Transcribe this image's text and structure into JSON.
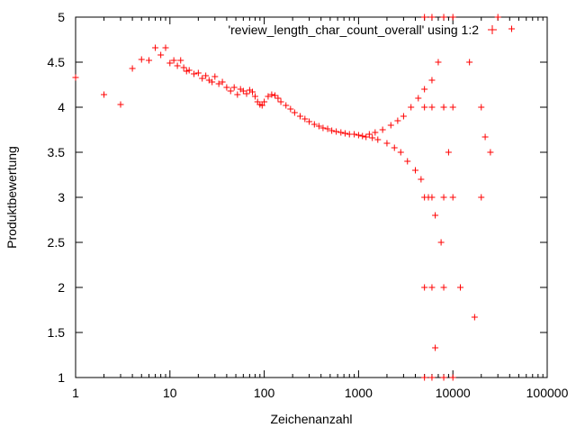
{
  "chart_data": {
    "type": "scatter",
    "title": "",
    "xlabel": "Zeichenanzahl",
    "ylabel": "Produktbewertung",
    "x_scale": "log",
    "xlim": [
      1,
      100000
    ],
    "ylim": [
      1,
      5
    ],
    "x_ticks": [
      1,
      10,
      100,
      1000,
      10000,
      100000
    ],
    "x_tick_labels": [
      "1",
      "10",
      "100",
      "1000",
      "10000",
      "100000"
    ],
    "y_ticks": [
      1,
      1.5,
      2,
      2.5,
      3,
      3.5,
      4,
      4.5,
      5
    ],
    "y_tick_labels": [
      "1",
      "1.5",
      "2",
      "2.5",
      "3",
      "3.5",
      "4",
      "4.5",
      "5"
    ],
    "grid": false,
    "legend_position": "top-right",
    "marker": "+",
    "color": "#ff0000",
    "series": [
      {
        "name": "'review_length_char_count_overall' using 1:2",
        "points": [
          [
            1,
            4.33
          ],
          [
            2,
            4.14
          ],
          [
            3,
            4.03
          ],
          [
            4,
            4.43
          ],
          [
            5,
            4.53
          ],
          [
            6,
            4.52
          ],
          [
            7,
            4.66
          ],
          [
            8,
            4.58
          ],
          [
            9,
            4.66
          ],
          [
            10,
            4.49
          ],
          [
            11,
            4.52
          ],
          [
            12,
            4.46
          ],
          [
            13,
            4.52
          ],
          [
            14,
            4.44
          ],
          [
            15,
            4.4
          ],
          [
            16,
            4.41
          ],
          [
            18,
            4.37
          ],
          [
            20,
            4.38
          ],
          [
            22,
            4.32
          ],
          [
            24,
            4.35
          ],
          [
            26,
            4.3
          ],
          [
            28,
            4.28
          ],
          [
            30,
            4.34
          ],
          [
            33,
            4.26
          ],
          [
            36,
            4.28
          ],
          [
            40,
            4.22
          ],
          [
            44,
            4.18
          ],
          [
            48,
            4.22
          ],
          [
            52,
            4.14
          ],
          [
            56,
            4.2
          ],
          [
            60,
            4.18
          ],
          [
            65,
            4.15
          ],
          [
            70,
            4.19
          ],
          [
            75,
            4.17
          ],
          [
            80,
            4.12
          ],
          [
            85,
            4.06
          ],
          [
            90,
            4.03
          ],
          [
            95,
            4.02
          ],
          [
            100,
            4.06
          ],
          [
            110,
            4.12
          ],
          [
            120,
            4.14
          ],
          [
            130,
            4.13
          ],
          [
            140,
            4.1
          ],
          [
            150,
            4.06
          ],
          [
            170,
            4.02
          ],
          [
            190,
            3.98
          ],
          [
            210,
            3.94
          ],
          [
            240,
            3.9
          ],
          [
            270,
            3.87
          ],
          [
            300,
            3.84
          ],
          [
            340,
            3.81
          ],
          [
            380,
            3.79
          ],
          [
            420,
            3.77
          ],
          [
            470,
            3.76
          ],
          [
            520,
            3.74
          ],
          [
            580,
            3.73
          ],
          [
            650,
            3.72
          ],
          [
            720,
            3.71
          ],
          [
            800,
            3.7
          ],
          [
            900,
            3.7
          ],
          [
            1000,
            3.69
          ],
          [
            1100,
            3.68
          ],
          [
            1200,
            3.67
          ],
          [
            1300,
            3.7
          ],
          [
            1400,
            3.66
          ],
          [
            1500,
            3.72
          ],
          [
            1600,
            3.64
          ],
          [
            1800,
            3.75
          ],
          [
            2000,
            3.6
          ],
          [
            2200,
            3.8
          ],
          [
            2400,
            3.55
          ],
          [
            2600,
            3.85
          ],
          [
            2800,
            3.5
          ],
          [
            3000,
            3.9
          ],
          [
            3300,
            3.4
          ],
          [
            3600,
            4.0
          ],
          [
            4000,
            3.3
          ],
          [
            4300,
            4.1
          ],
          [
            4600,
            3.2
          ],
          [
            5000,
            4.2
          ],
          [
            5500,
            3.0
          ],
          [
            6000,
            4.3
          ],
          [
            6500,
            2.8
          ],
          [
            7000,
            4.5
          ],
          [
            7500,
            2.5
          ],
          [
            8000,
            4.0
          ],
          [
            9000,
            3.5
          ],
          [
            10000,
            3.0
          ],
          [
            12000,
            2.0
          ],
          [
            15000,
            4.5
          ],
          [
            20000,
            4.0
          ],
          [
            25000,
            3.5
          ],
          [
            30000,
            5.0
          ],
          [
            42000,
            4.87
          ],
          [
            5000,
            5.0
          ],
          [
            6000,
            5.0
          ],
          [
            8000,
            5.0
          ],
          [
            10000,
            5.0
          ],
          [
            5000,
            1.0
          ],
          [
            6000,
            1.0
          ],
          [
            8000,
            1.0
          ],
          [
            10000,
            1.0
          ],
          [
            5000,
            2.0
          ],
          [
            6000,
            2.0
          ],
          [
            8000,
            2.0
          ],
          [
            5000,
            3.0
          ],
          [
            6000,
            3.0
          ],
          [
            8000,
            3.0
          ],
          [
            5000,
            4.0
          ],
          [
            6000,
            4.0
          ],
          [
            8000,
            4.0
          ],
          [
            10000,
            4.0
          ],
          [
            6500,
            1.33
          ],
          [
            17000,
            1.67
          ],
          [
            20000,
            3.0
          ],
          [
            22000,
            3.67
          ]
        ]
      }
    ]
  }
}
